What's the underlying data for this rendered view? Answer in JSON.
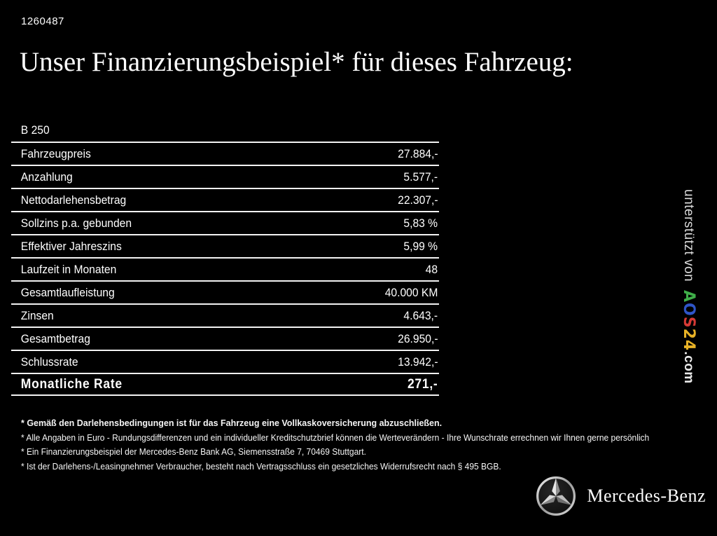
{
  "page": {
    "id_number": "1260487",
    "title": "Unser Finanzierungsbeispiel* für dieses Fahrzeug:"
  },
  "financing_table": {
    "model": "B 250",
    "rows": [
      {
        "label": "Fahrzeugpreis",
        "value": "27.884,-"
      },
      {
        "label": "Anzahlung",
        "value": "5.577,-"
      },
      {
        "label": "Nettodarlehensbetrag",
        "value": "22.307,-"
      },
      {
        "label": "Sollzins p.a. gebunden",
        "value": "5,83 %"
      },
      {
        "label": "Effektiver Jahreszins",
        "value": "5,99 %"
      },
      {
        "label": "Laufzeit in Monaten",
        "value": "48"
      },
      {
        "label": "Gesamtlaufleistung",
        "value": "40.000 KM"
      },
      {
        "label": "Zinsen",
        "value": "4.643,-"
      },
      {
        "label": "Gesamtbetrag",
        "value": "26.950,-"
      },
      {
        "label": "Schlussrate",
        "value": "13.942,-"
      }
    ],
    "total_row": {
      "label": "Monatliche Rate",
      "value": "271,-"
    }
  },
  "footnotes": [
    {
      "text": "* Gemäß den Darlehensbedingungen ist für das Fahrzeug eine Vollkaskoversicherung abzuschließen.",
      "bold": true
    },
    {
      "text": "* Alle Angaben in Euro - Rundungsdifferenzen und ein individueller Kreditschutzbrief können die Werteverändern - Ihre Wunschrate errechnen wir Ihnen gerne persönlich",
      "bold": false
    },
    {
      "text": "* Ein Finanzierungsbeispiel der Mercedes-Benz Bank AG, Siemensstraße 7, 70469 Stuttgart.",
      "bold": false
    },
    {
      "text": "* Ist der Darlehens-/Leasingnehmer Verbraucher, besteht nach Vertragsschluss ein gesetzliches Widerrufsrecht nach § 495 BGB.",
      "bold": false
    }
  ],
  "supporter": {
    "prefix": "unterstützt von",
    "logo_letters": [
      {
        "char": "A",
        "color": "#3fae49"
      },
      {
        "char": "O",
        "color": "#2f55c8"
      },
      {
        "char": "S",
        "color": "#d63a35"
      },
      {
        "char": "2",
        "color": "#e8b226"
      },
      {
        "char": "4",
        "color": "#e8b226"
      }
    ],
    "suffix": ".com"
  },
  "brand": {
    "name": "Mercedes-Benz"
  }
}
